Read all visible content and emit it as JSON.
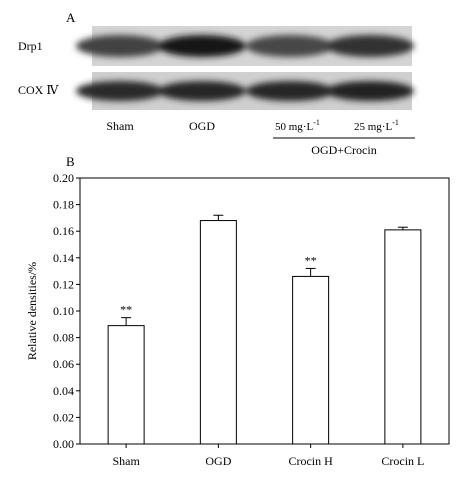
{
  "panel_a": {
    "label": "A",
    "rows": [
      {
        "label": "Drp1",
        "intensities": [
          0.7,
          0.95,
          0.68,
          0.8
        ]
      },
      {
        "label": "COX Ⅳ",
        "intensities": [
          0.82,
          0.85,
          0.86,
          0.88
        ]
      }
    ],
    "lane_labels": [
      "Sham",
      "OGD"
    ],
    "dose_labels": [
      {
        "value": "50 mg·L",
        "exp": "-1"
      },
      {
        "value": "25 mg·L",
        "exp": "-1"
      }
    ],
    "group_label": "OGD+Crocin"
  },
  "panel_b": {
    "label": "B"
  },
  "chart_data": {
    "type": "bar",
    "categories": [
      "Sham",
      "OGD",
      "Crocin H",
      "Crocin L"
    ],
    "values": [
      0.089,
      0.168,
      0.126,
      0.161
    ],
    "errors": [
      0.006,
      0.004,
      0.006,
      0.002
    ],
    "significance": [
      "**",
      "",
      "**",
      ""
    ],
    "xlabel": "",
    "ylabel": "Relative densities/%",
    "ylim": [
      0,
      0.2
    ],
    "yticks": [
      "0.00",
      "0.02",
      "0.04",
      "0.06",
      "0.08",
      "0.10",
      "0.12",
      "0.14",
      "0.16",
      "0.18",
      "0.20"
    ],
    "grid": false,
    "bar_color": "#ffffff",
    "edge_color": "#000000"
  }
}
